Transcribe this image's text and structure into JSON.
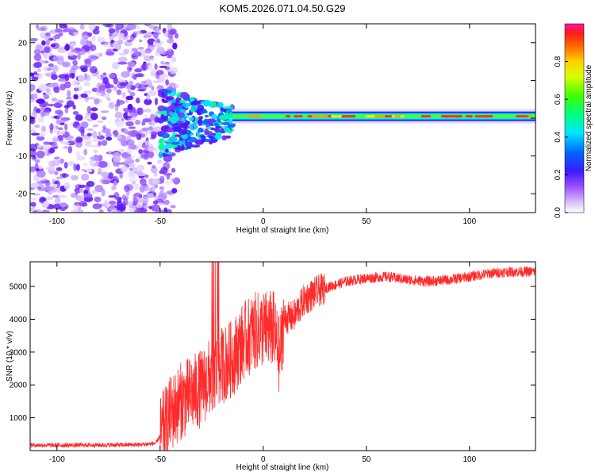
{
  "title": "KOM5.2026.071.04.50.G29",
  "colors": {
    "signal": "#ff2a2a",
    "axis": "#000000",
    "speckle": "#7a2cff",
    "speckle_light": "#d8c4ff"
  },
  "chart_data": [
    {
      "type": "heatmap",
      "title": "KOM5.2026.071.04.50.G29",
      "xlabel": "Height of straight line (km)",
      "ylabel": "Frequency (Hz)",
      "xlim": [
        -113,
        132
      ],
      "ylim": [
        -25,
        25
      ],
      "xticks": [
        -100,
        -50,
        0,
        50,
        100
      ],
      "yticks": [
        -20,
        -10,
        0,
        10,
        20
      ],
      "colorbar": {
        "label": "Normalized spectral amplitude",
        "range": [
          0.0,
          1.0
        ],
        "ticks": [
          0.0,
          0.2,
          0.4,
          0.6,
          0.8
        ],
        "tick_labels": [
          "0.0",
          "0.2",
          "0.4",
          "0.6",
          "0.8"
        ]
      },
      "features": {
        "noise_region_x": [
          -113,
          -50
        ],
        "transition_region_x": [
          -50,
          -15
        ],
        "carrier_line_x": [
          -15,
          132
        ],
        "carrier_frequency_hz": 0.5
      }
    },
    {
      "type": "line",
      "xlabel": "Height of straight line (km)",
      "ylabel": "SNR (10 * v/v)",
      "xlim": [
        -113,
        132
      ],
      "ylim": [
        0,
        5750
      ],
      "xticks": [
        -100,
        -50,
        0,
        50,
        100
      ],
      "yticks": [
        1000,
        2000,
        3000,
        4000,
        5000
      ],
      "series": [
        {
          "name": "SNR",
          "x": [
            -113,
            -100,
            -80,
            -60,
            -52,
            -48,
            -45,
            -40,
            -35,
            -30,
            -25,
            -22,
            -20,
            -15,
            -10,
            -5,
            0,
            5,
            8,
            10,
            15,
            20,
            25,
            30,
            35,
            40,
            50,
            60,
            70,
            80,
            90,
            100,
            110,
            120,
            132
          ],
          "values": [
            170,
            165,
            170,
            180,
            220,
            700,
            1100,
            1500,
            1700,
            1900,
            2300,
            2500,
            2600,
            2800,
            3300,
            3600,
            3700,
            3700,
            2800,
            4000,
            4100,
            4600,
            4800,
            4950,
            5050,
            5150,
            5250,
            5300,
            5200,
            5150,
            5200,
            5300,
            5400,
            5450,
            5450
          ]
        }
      ]
    }
  ]
}
